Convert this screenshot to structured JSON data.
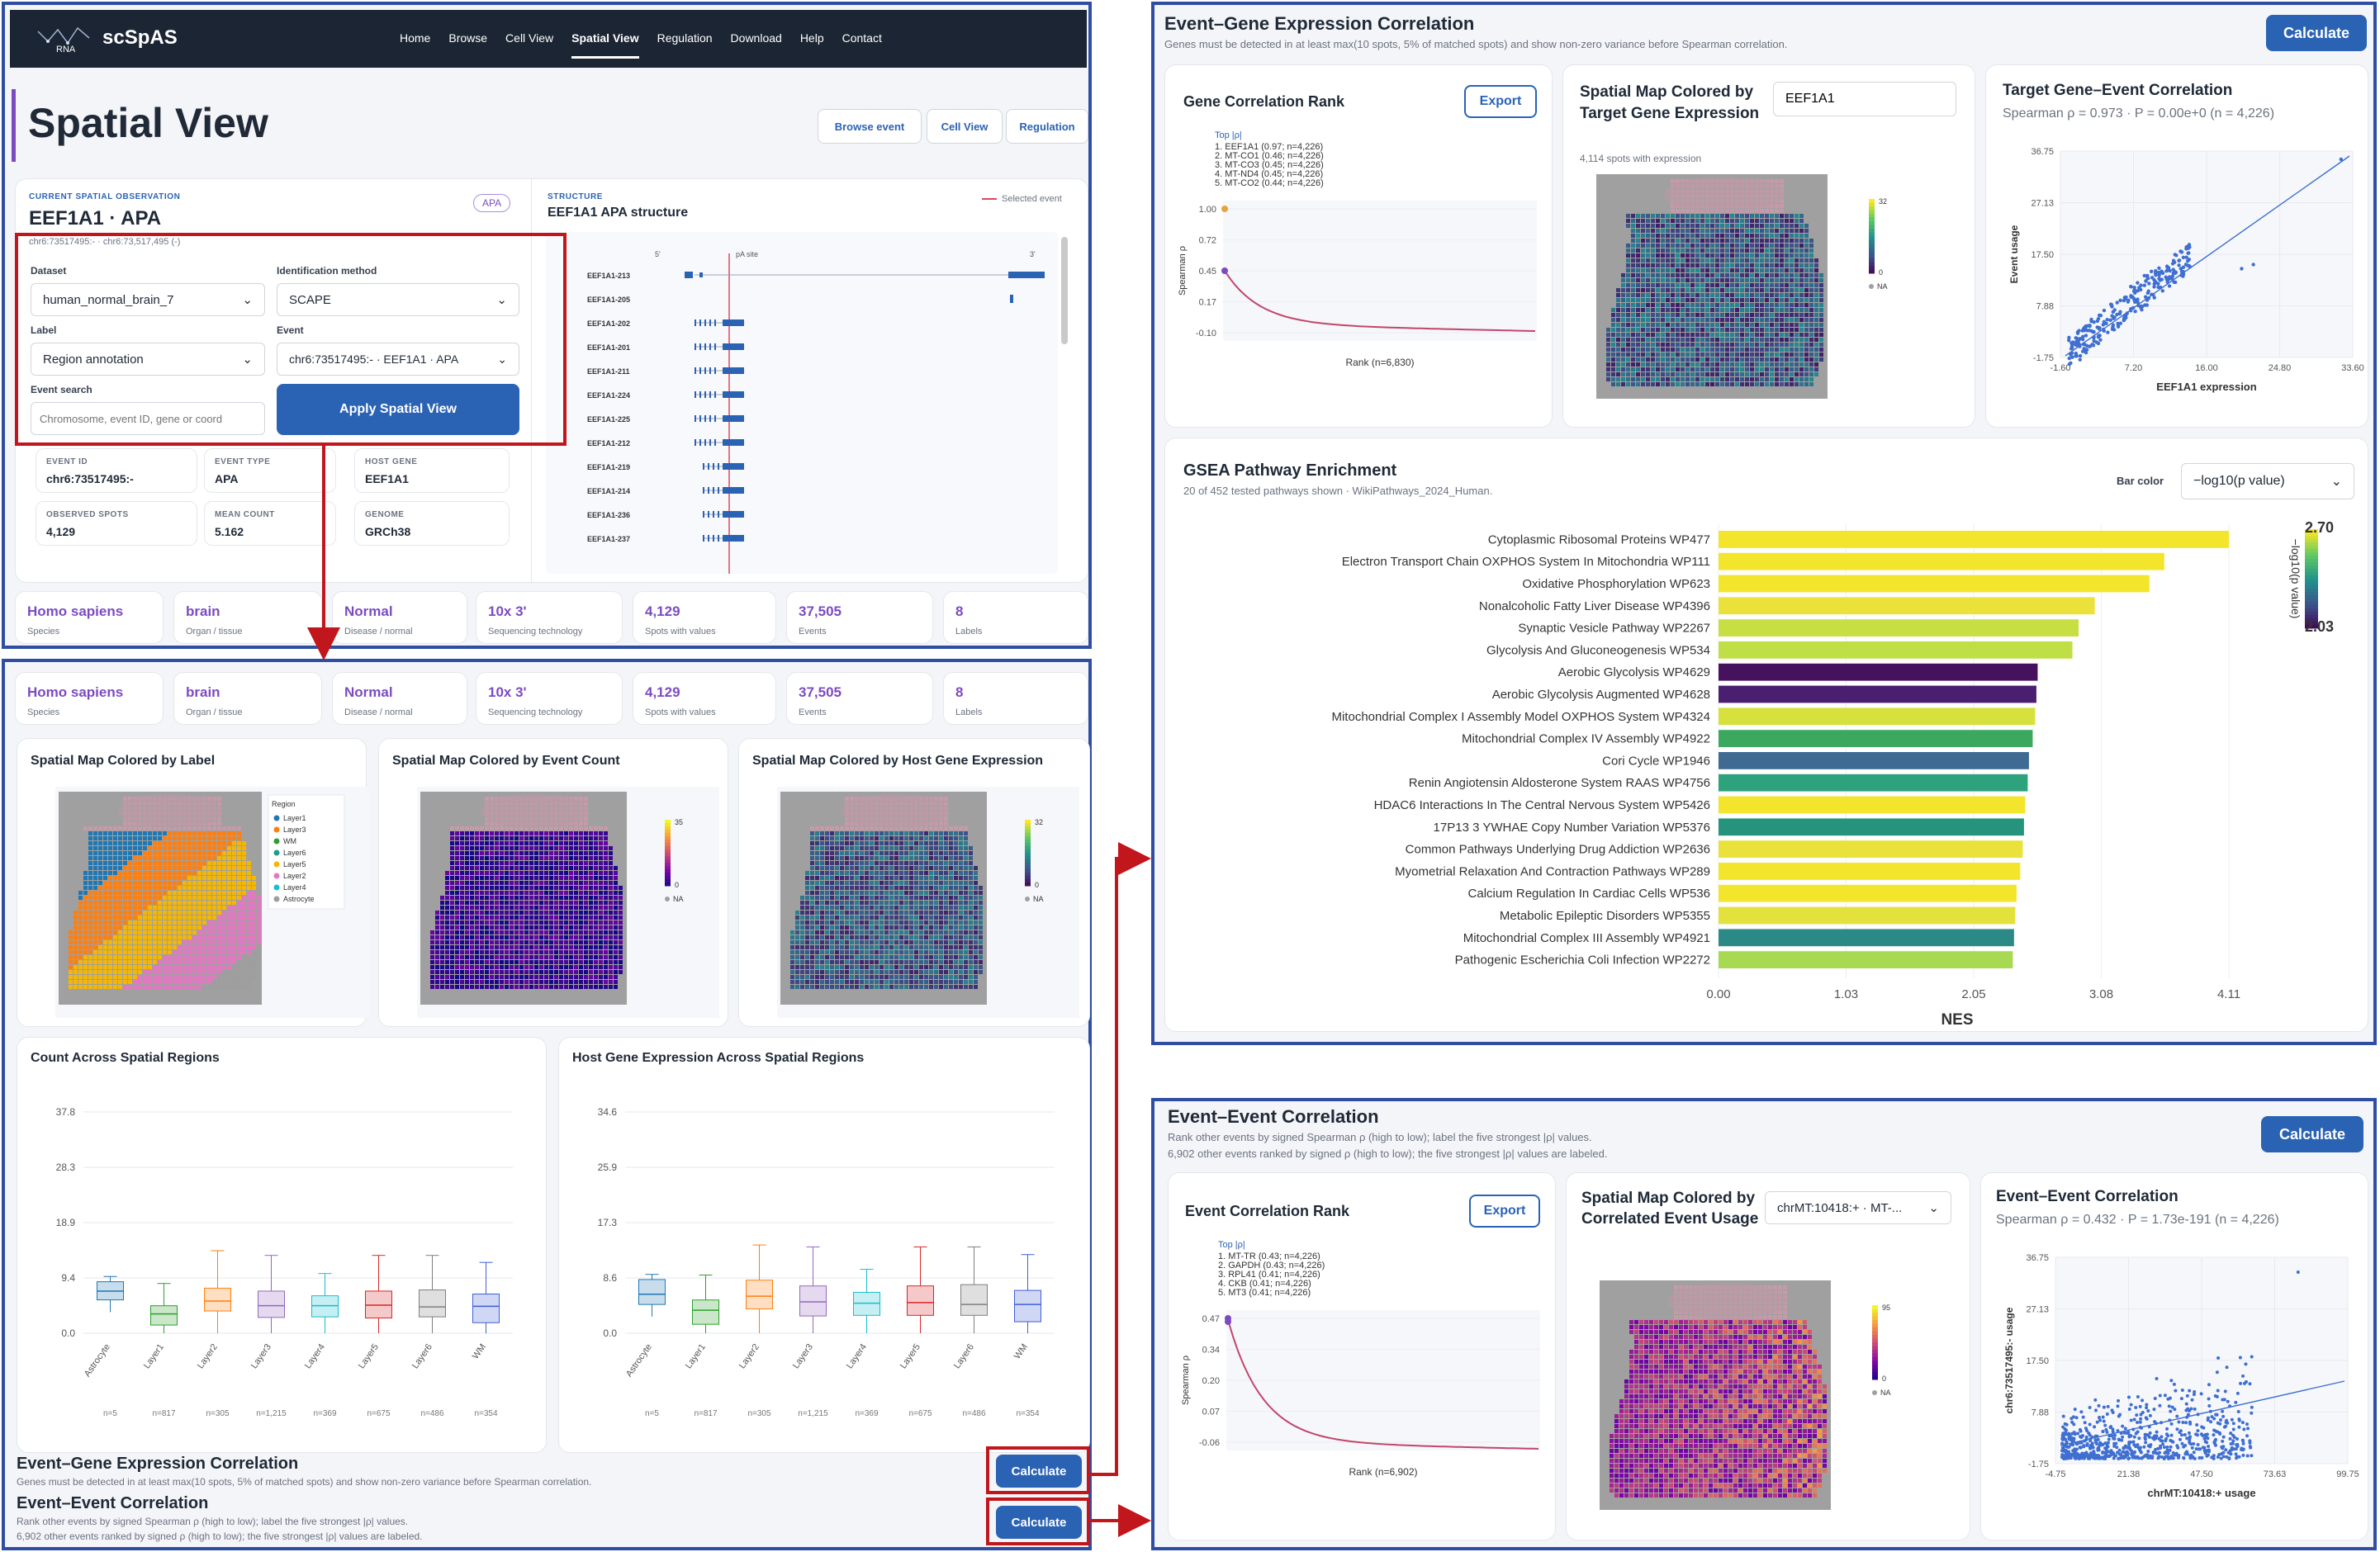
{
  "nav": {
    "logo_sub": "RNA",
    "brand": "scSpAS",
    "items": [
      "Home",
      "Browse",
      "Cell View",
      "Spatial View",
      "Regulation",
      "Download",
      "Help",
      "Contact"
    ],
    "active": "Spatial View"
  },
  "page": {
    "title": "Spatial View",
    "buttons": [
      "Browse event",
      "Cell View",
      "Regulation"
    ]
  },
  "obs": {
    "kicker": "CURRENT SPATIAL OBSERVATION",
    "title": "EEF1A1 · APA",
    "badge": "APA",
    "coords": "chr6:73517495:- · chr6:73,517,495 (-)"
  },
  "form": {
    "dataset_label": "Dataset",
    "dataset_value": "human_normal_brain_7",
    "method_label": "Identification method",
    "method_value": "SCAPE",
    "label_label": "Label",
    "label_value": "Region annotation",
    "event_label": "Event",
    "event_value": "chr6:73517495:- · EEF1A1 · APA",
    "search_label": "Event search",
    "search_placeholder": "Chromosome, event ID, gene or coord",
    "apply": "Apply Spatial View"
  },
  "meta": [
    {
      "k": "EVENT ID",
      "v": "chr6:73517495:-"
    },
    {
      "k": "EVENT TYPE",
      "v": "APA"
    },
    {
      "k": "HOST GENE",
      "v": "EEF1A1"
    },
    {
      "k": "OBSERVED SPOTS",
      "v": "4,129"
    },
    {
      "k": "MEAN COUNT",
      "v": "5.162"
    },
    {
      "k": "GENOME",
      "v": "GRCh38"
    }
  ],
  "structure": {
    "kicker": "STRUCTURE",
    "title": "EEF1A1 APA structure",
    "legend": "Selected event",
    "pa_label": "pA site",
    "ends": [
      "5'",
      "3'"
    ],
    "transcripts": [
      "EEF1A1-213",
      "EEF1A1-205",
      "EEF1A1-202",
      "EEF1A1-201",
      "EEF1A1-211",
      "EEF1A1-224",
      "EEF1A1-225",
      "EEF1A1-212",
      "EEF1A1-219",
      "EEF1A1-214",
      "EEF1A1-236",
      "EEF1A1-237"
    ]
  },
  "stats": [
    {
      "v": "Homo sapiens",
      "k": "Species"
    },
    {
      "v": "brain",
      "k": "Organ / tissue"
    },
    {
      "v": "Normal",
      "k": "Disease / normal"
    },
    {
      "v": "10x 3'",
      "k": "Sequencing technology"
    },
    {
      "v": "4,129",
      "k": "Spots with values"
    },
    {
      "v": "37,505",
      "k": "Events"
    },
    {
      "v": "8",
      "k": "Labels"
    }
  ],
  "maps": {
    "label_title": "Spatial Map Colored by Label",
    "count_title": "Spatial Map Colored by Event Count",
    "host_title": "Spatial Map Colored by Host Gene Expression",
    "legend_title": "Region",
    "regions": [
      "Layer1",
      "Layer3",
      "WM",
      "Layer6",
      "Layer5",
      "Layer2",
      "Layer4",
      "Astrocyte"
    ],
    "region_colors": [
      "#1f77b4",
      "#ff7f0e",
      "#2ca02c",
      "#1a9e8f",
      "#f5b700",
      "#e377c2",
      "#17becf",
      "#9e9e9e"
    ],
    "count_scale": [
      "35",
      "0",
      "NA"
    ],
    "host_scale": [
      "32",
      "0",
      "NA"
    ]
  },
  "box_count": {
    "title": "Count Across Spatial Regions",
    "yticks": [
      "37.8",
      "28.3",
      "18.9",
      "9.4",
      "0.0"
    ],
    "categories": [
      "Astrocyte",
      "Layer1",
      "Layer2",
      "Layer3",
      "Layer4",
      "Layer5",
      "Layer6",
      "WM"
    ],
    "n": [
      "n=5",
      "n=817",
      "n=305",
      "n=1,215",
      "n=369",
      "n=675",
      "n=486",
      "n=354"
    ]
  },
  "box_host": {
    "title": "Host Gene Expression Across Spatial Regions",
    "yticks": [
      "34.6",
      "25.9",
      "17.3",
      "8.6",
      "0.0"
    ],
    "categories": [
      "Astrocyte",
      "Layer1",
      "Layer2",
      "Layer3",
      "Layer4",
      "Layer5",
      "Layer6",
      "WM"
    ],
    "n": [
      "n=5",
      "n=817",
      "n=305",
      "n=1,215",
      "n=369",
      "n=675",
      "n=486",
      "n=354"
    ]
  },
  "bottom": {
    "eg_title": "Event–Gene Expression Correlation",
    "eg_sub": "Genes must be detected in at least max(10 spots, 5% of matched spots) and show non-zero variance before Spearman correlation.",
    "ee_title": "Event–Event Correlation",
    "ee_sub1": "Rank other events by signed Spearman ρ (high to low); label the five strongest |ρ| values.",
    "ee_sub2": "6,902 other events ranked by signed ρ (high to low); the five strongest |ρ| values are labeled.",
    "calc": "Calculate"
  },
  "eg": {
    "title": "Event–Gene Expression Correlation",
    "sub": "Genes must be detected in at least max(10 spots, 5% of matched spots) and show non-zero variance before Spearman correlation.",
    "calc": "Calculate",
    "rank_title": "Gene Correlation Rank",
    "export": "Export",
    "top_title": "Top |ρ|",
    "top": [
      "1. EEF1A1 (0.97; n=4,226)",
      "2. MT-CO1 (0.46; n=4,226)",
      "3. MT-CO3 (0.45; n=4,226)",
      "4. MT-ND4 (0.45; n=4,226)",
      "5. MT-CO2 (0.44; n=4,226)"
    ],
    "rank_yticks": [
      "1.00",
      "0.72",
      "0.45",
      "0.17",
      "-0.10"
    ],
    "rank_ylabel": "Spearman ρ",
    "rank_xlabel": "Rank (n=6,830)",
    "map_title": "Spatial Map Colored by Target Gene Expression",
    "map_input": "EEF1A1",
    "map_sub": "4,114 spots with expression",
    "map_scale": [
      "32",
      "0",
      "NA"
    ],
    "sc_title": "Target Gene–Event Correlation",
    "sc_stats": "Spearman ρ = 0.973 · P = 0.00e+0 (n = 4,226)",
    "sc_yticks": [
      "36.75",
      "27.13",
      "17.50",
      "7.88",
      "-1.75"
    ],
    "sc_xticks": [
      "-1.60",
      "7.20",
      "16.00",
      "24.80",
      "33.60"
    ],
    "sc_ylabel": "Event usage",
    "sc_xlabel": "EEF1A1 expression"
  },
  "gsea": {
    "title": "GSEA Pathway Enrichment",
    "sub": "20 of 452 tested pathways shown · WikiPathways_2024_Human.",
    "barcolor_label": "Bar color",
    "barcolor_value": "−log10(p value)",
    "xlabel": "NES",
    "xticks": [
      "0.00",
      "1.03",
      "2.05",
      "3.08",
      "4.11"
    ],
    "cbar_label": "−log10(p value)",
    "cbar_max": "2.70",
    "cbar_min": "2.03"
  },
  "chart_data": [
    {
      "type": "bar",
      "title": "GSEA Pathway Enrichment",
      "xlabel": "NES",
      "xlim": [
        0,
        4.11
      ],
      "orientation": "horizontal",
      "categories": [
        "Cytoplasmic Ribosomal Proteins WP477",
        "Electron Transport Chain OXPHOS System In Mitochondria WP111",
        "Oxidative Phosphorylation WP623",
        "Nonalcoholic Fatty Liver Disease WP4396",
        "Synaptic Vesicle Pathway WP2267",
        "Glycolysis And Gluconeogenesis WP534",
        "Aerobic Glycolysis WP4629",
        "Aerobic Glycolysis Augmented WP4628",
        "Mitochondrial Complex I Assembly Model OXPHOS System WP4324",
        "Mitochondrial Complex IV Assembly WP4922",
        "Cori Cycle WP1946",
        "Renin Angiotensin Aldosterone System RAAS WP4756",
        "HDAC6 Interactions In The Central Nervous System WP5426",
        "17P13 3 YWHAE Copy Number Variation WP5376",
        "Common Pathways Underlying Drug Addiction WP2636",
        "Myometrial Relaxation And Contraction Pathways WP289",
        "Calcium Regulation In Cardiac Cells WP536",
        "Metabolic Epileptic Disorders WP5355",
        "Mitochondrial Complex III Assembly WP4921",
        "Pathogenic Escherichia Coli Infection WP2272"
      ],
      "values": [
        4.11,
        3.59,
        3.47,
        3.03,
        2.9,
        2.85,
        2.57,
        2.56,
        2.55,
        2.53,
        2.5,
        2.49,
        2.47,
        2.46,
        2.45,
        2.43,
        2.4,
        2.39,
        2.38,
        2.37
      ],
      "colors": [
        "#f2e52c",
        "#f2e52c",
        "#f2e52c",
        "#eae23a",
        "#c8df44",
        "#c0de46",
        "#45125e",
        "#4a1f6f",
        "#d6e13e",
        "#3ca85f",
        "#3f6b92",
        "#2ea27c",
        "#f2e52c",
        "#26947d",
        "#e8e23b",
        "#f2e52c",
        "#f2e52c",
        "#e3e13c",
        "#2b8a86",
        "#a8d953"
      ]
    },
    {
      "type": "box",
      "title": "Count Across Spatial Regions",
      "categories": [
        "Astrocyte",
        "Layer1",
        "Layer2",
        "Layer3",
        "Layer4",
        "Layer5",
        "Layer6",
        "WM"
      ],
      "ylim": [
        0,
        37.8
      ],
      "q1": [
        5.7,
        1.4,
        3.8,
        2.7,
        2.8,
        2.6,
        2.8,
        1.8
      ],
      "median": [
        7.2,
        3.3,
        5.5,
        4.7,
        4.7,
        4.8,
        4.5,
        4.6
      ],
      "q3": [
        8.8,
        4.7,
        7.7,
        7.2,
        6.4,
        7.2,
        7.4,
        6.7
      ],
      "min": [
        3.6,
        0,
        0,
        0,
        0,
        0,
        0,
        0
      ],
      "max": [
        9.7,
        8.5,
        14.1,
        13.3,
        10.2,
        13.3,
        13.3,
        12.1
      ],
      "colors": [
        "#1f77b4",
        "#2ca02c",
        "#ff7f0e",
        "#9467bd",
        "#17becf",
        "#d62728",
        "#7f7f7f",
        "#3e5fd6"
      ]
    },
    {
      "type": "box",
      "title": "Host Gene Expression Across Spatial Regions",
      "categories": [
        "Astrocyte",
        "Layer1",
        "Layer2",
        "Layer3",
        "Layer4",
        "Layer5",
        "Layer6",
        "WM"
      ],
      "ylim": [
        0,
        34.6
      ],
      "q1": [
        4.5,
        1.4,
        3.8,
        2.7,
        2.8,
        2.8,
        2.8,
        1.8
      ],
      "median": [
        6.1,
        3.6,
        5.8,
        4.9,
        4.7,
        4.8,
        4.5,
        4.5
      ],
      "q3": [
        8.4,
        5.2,
        8.3,
        7.4,
        6.4,
        7.4,
        7.6,
        6.7
      ],
      "min": [
        2.6,
        0,
        0,
        0,
        0,
        0,
        0,
        0
      ],
      "max": [
        9.2,
        9.1,
        13.8,
        13.5,
        10,
        13.5,
        13.5,
        12.3
      ],
      "colors": [
        "#1f77b4",
        "#2ca02c",
        "#ff7f0e",
        "#9467bd",
        "#17becf",
        "#d62728",
        "#7f7f7f",
        "#3e5fd6"
      ]
    }
  ],
  "ee": {
    "title": "Event–Event Correlation",
    "sub1": "Rank other events by signed Spearman ρ (high to low); label the five strongest |ρ| values.",
    "sub2": "6,902 other events ranked by signed ρ (high to low); the five strongest |ρ| values are labeled.",
    "calc": "Calculate",
    "rank_title": "Event Correlation Rank",
    "export": "Export",
    "top_title": "Top |ρ|",
    "top": [
      "1. MT-TR (0.43; n=4,226)",
      "2. GAPDH (0.43; n=4,226)",
      "3. RPL41 (0.41; n=4,226)",
      "4. CKB (0.41; n=4,226)",
      "5. MT3 (0.41; n=4,226)"
    ],
    "rank_yticks": [
      "0.47",
      "0.34",
      "0.20",
      "0.07",
      "-0.06"
    ],
    "rank_ylabel": "Spearman ρ",
    "rank_xlabel": "Rank (n=6,902)",
    "map_title": "Spatial Map Colored by Correlated Event Usage",
    "map_select": "chrMT:10418:+ · MT-...",
    "map_scale": [
      "95",
      "0",
      "NA"
    ],
    "sc_title": "Event–Event Correlation",
    "sc_stats": "Spearman ρ = 0.432 · P = 1.73e-191 (n = 4,226)",
    "sc_yticks": [
      "36.75",
      "27.13",
      "17.50",
      "7.88",
      "-1.75"
    ],
    "sc_xticks": [
      "-4.75",
      "21.38",
      "47.50",
      "73.63",
      "99.75"
    ],
    "sc_ylabel": "chr6:73517495:- usage",
    "sc_xlabel": "chrMT:10418:+ usage"
  }
}
